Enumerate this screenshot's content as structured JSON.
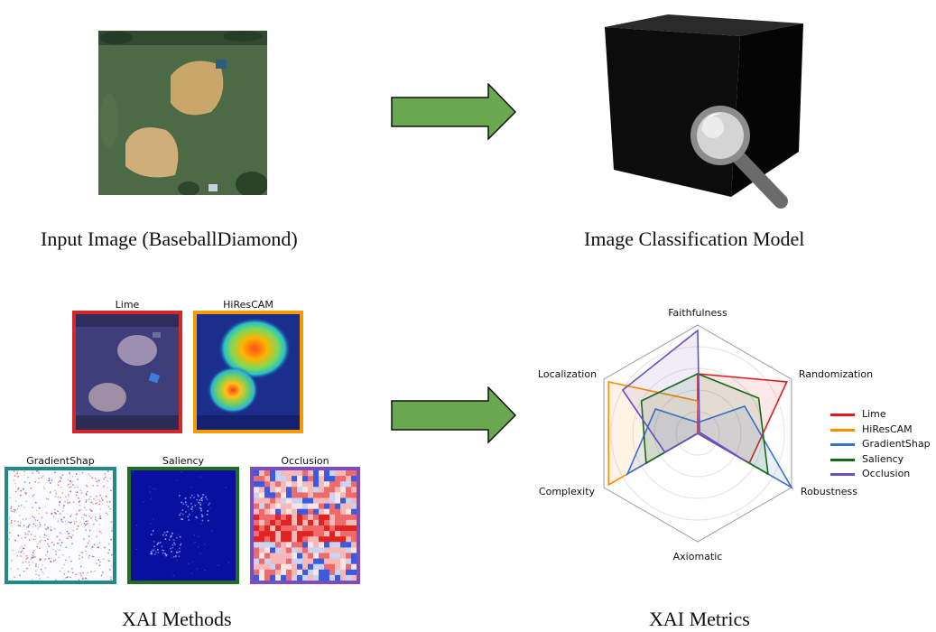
{
  "captions": {
    "input": "Input Image (BaseballDiamond)",
    "model": "Image Classification Model",
    "methods": "XAI Methods",
    "metrics": "XAI Metrics"
  },
  "methods": [
    {
      "label": "Lime",
      "border": "#d62728"
    },
    {
      "label": "HiResCAM",
      "border": "#f59b00"
    },
    {
      "label": "GradientShap",
      "border": "#1f8a8a"
    },
    {
      "label": "Saliency",
      "border": "#1f6f1f"
    },
    {
      "label": "Occlusion",
      "border": "#7b4cc2"
    }
  ],
  "arrow_color": "#6aa84f",
  "icons": [
    "black-box-cube-icon",
    "magnifying-glass-icon",
    "right-arrow-icon"
  ],
  "chart_data": {
    "type": "radar",
    "axes": [
      "Faithfulness",
      "Randomization",
      "Robustness",
      "Axiomatic",
      "Complexity",
      "Localization"
    ],
    "range": [
      0,
      1
    ],
    "grid": true,
    "legend_position": "right",
    "series": [
      {
        "name": "Lime",
        "color": "#e31a1c",
        "values": [
          0.55,
          0.95,
          0.55,
          0.0,
          0.1,
          0.0
        ]
      },
      {
        "name": "HiResCAM",
        "color": "#ff8c00",
        "values": [
          0.3,
          0.02,
          0.45,
          0.0,
          0.95,
          0.95
        ]
      },
      {
        "name": "GradientShap",
        "color": "#3b6fd6",
        "values": [
          0.1,
          0.5,
          1.0,
          0.0,
          0.75,
          0.45
        ]
      },
      {
        "name": "Saliency",
        "color": "#156b15",
        "values": [
          0.55,
          0.65,
          0.75,
          0.0,
          0.55,
          0.6
        ]
      },
      {
        "name": "Occlusion",
        "color": "#6a4fc4",
        "values": [
          0.95,
          0.02,
          0.5,
          0.0,
          0.35,
          0.8
        ]
      }
    ]
  }
}
